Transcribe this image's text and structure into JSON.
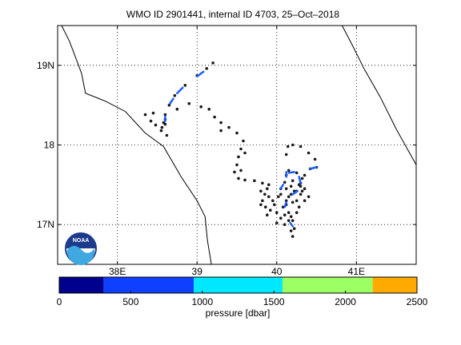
{
  "map": {
    "title": "WMO ID 2901441, internal ID 4703, 25–Oct–2018",
    "lon_range": [
      37.25,
      41.75
    ],
    "lat_range": [
      16.5,
      19.5
    ],
    "lon_ticks": [
      {
        "value": 38,
        "label": "38E"
      },
      {
        "value": 39,
        "label": "39"
      },
      {
        "value": 40,
        "label": "40"
      },
      {
        "value": 41,
        "label": "41E"
      }
    ],
    "lat_ticks": [
      {
        "value": 17,
        "label": "17N"
      },
      {
        "value": 18,
        "label": "18"
      },
      {
        "value": 19,
        "label": "19N"
      }
    ],
    "grid": true,
    "coastlines": [
      [
        [
          37.3,
          19.5
        ],
        [
          37.4,
          19.3
        ],
        [
          37.55,
          18.9
        ],
        [
          37.6,
          18.65
        ],
        [
          37.85,
          18.55
        ],
        [
          38.1,
          18.42
        ],
        [
          38.35,
          18.15
        ],
        [
          38.58,
          17.98
        ],
        [
          38.8,
          17.6
        ],
        [
          39.0,
          17.3
        ],
        [
          39.1,
          17.1
        ],
        [
          39.13,
          16.8
        ],
        [
          39.18,
          16.5
        ]
      ],
      [
        [
          40.82,
          19.5
        ],
        [
          40.95,
          19.25
        ],
        [
          41.1,
          18.95
        ],
        [
          41.3,
          18.6
        ],
        [
          41.5,
          18.2
        ],
        [
          41.75,
          17.75
        ]
      ]
    ],
    "logo": "noaa-logo",
    "logo_text": "NOAA",
    "track_color": "#1a1a1a",
    "shallow_color": "#1a5cff",
    "track": [
      [
        39.2,
        19.03
      ],
      [
        39.12,
        18.96
      ],
      [
        39.0,
        18.87
      ],
      [
        38.85,
        18.75
      ],
      [
        38.72,
        18.62
      ],
      [
        38.65,
        18.5
      ],
      [
        38.6,
        18.38
      ],
      [
        38.58,
        18.28
      ],
      [
        38.56,
        18.22
      ],
      [
        38.6,
        18.32
      ],
      [
        38.75,
        18.45
      ],
      [
        38.9,
        18.52
      ],
      [
        39.05,
        18.48
      ],
      [
        39.15,
        18.45
      ],
      [
        39.22,
        18.35
      ],
      [
        39.3,
        18.28
      ],
      [
        39.4,
        18.22
      ],
      [
        39.5,
        18.15
      ],
      [
        39.58,
        18.05
      ],
      [
        39.55,
        17.95
      ],
      [
        39.52,
        17.85
      ],
      [
        39.5,
        17.75
      ],
      [
        39.47,
        17.66
      ],
      [
        39.52,
        17.58
      ],
      [
        39.6,
        17.56
      ],
      [
        39.72,
        17.55
      ],
      [
        39.82,
        17.52
      ],
      [
        39.88,
        17.45
      ],
      [
        39.85,
        17.38
      ],
      [
        39.82,
        17.3
      ],
      [
        39.86,
        17.22
      ],
      [
        39.92,
        17.18
      ],
      [
        39.97,
        17.25
      ],
      [
        40.02,
        17.35
      ],
      [
        40.05,
        17.45
      ],
      [
        40.1,
        17.53
      ],
      [
        40.12,
        17.62
      ],
      [
        40.15,
        17.68
      ],
      [
        40.25,
        17.65
      ],
      [
        40.32,
        17.58
      ],
      [
        40.3,
        17.48
      ],
      [
        40.22,
        17.42
      ],
      [
        40.15,
        17.35
      ],
      [
        40.12,
        17.25
      ],
      [
        40.15,
        17.15
      ],
      [
        40.2,
        17.05
      ],
      [
        40.22,
        16.95
      ],
      [
        40.2,
        16.85
      ],
      [
        40.18,
        16.92
      ],
      [
        40.15,
        17.05
      ],
      [
        40.1,
        17.12
      ],
      [
        40.08,
        17.22
      ],
      [
        40.12,
        17.3
      ],
      [
        40.18,
        17.38
      ],
      [
        40.25,
        17.42
      ],
      [
        40.3,
        17.52
      ],
      [
        40.35,
        17.62
      ],
      [
        40.42,
        17.7
      ],
      [
        40.5,
        17.72
      ],
      [
        40.48,
        17.82
      ],
      [
        40.4,
        17.9
      ],
      [
        40.3,
        17.98
      ],
      [
        40.2,
        18.0
      ],
      [
        40.14,
        17.98
      ],
      [
        40.12,
        17.88
      ]
    ],
    "scatter_points": [
      [
        38.35,
        18.38
      ],
      [
        38.42,
        18.3
      ],
      [
        38.48,
        18.25
      ],
      [
        38.55,
        18.18
      ],
      [
        38.62,
        18.12
      ],
      [
        38.6,
        18.26
      ],
      [
        38.45,
        18.4
      ],
      [
        39.3,
        18.18
      ],
      [
        39.6,
        17.9
      ],
      [
        39.55,
        17.68
      ],
      [
        39.9,
        17.5
      ],
      [
        39.8,
        17.42
      ],
      [
        39.9,
        17.35
      ],
      [
        39.95,
        17.3
      ],
      [
        39.8,
        17.25
      ],
      [
        39.88,
        17.12
      ],
      [
        40.0,
        17.15
      ],
      [
        40.05,
        17.08
      ],
      [
        40.0,
        17.02
      ],
      [
        40.25,
        17.3
      ],
      [
        40.28,
        17.22
      ],
      [
        40.3,
        17.38
      ],
      [
        40.35,
        17.45
      ],
      [
        40.28,
        17.5
      ],
      [
        40.2,
        17.55
      ],
      [
        40.12,
        17.45
      ],
      [
        40.05,
        17.38
      ],
      [
        40.2,
        17.28
      ],
      [
        40.35,
        17.3
      ],
      [
        40.25,
        17.15
      ],
      [
        40.1,
        17.0
      ],
      [
        40.18,
        17.1
      ],
      [
        40.4,
        17.35
      ],
      [
        40.32,
        17.42
      ],
      [
        40.18,
        17.48
      ]
    ],
    "shallow_segments": [
      [
        [
          39.08,
          18.92
        ],
        [
          39.0,
          18.86
        ]
      ],
      [
        [
          38.82,
          18.72
        ],
        [
          38.75,
          18.65
        ]
      ],
      [
        [
          38.7,
          18.58
        ],
        [
          38.66,
          18.52
        ]
      ],
      [
        [
          38.6,
          18.36
        ],
        [
          38.6,
          18.3
        ]
      ],
      [
        [
          40.15,
          17.65
        ],
        [
          40.22,
          17.66
        ]
      ],
      [
        [
          40.28,
          17.6
        ],
        [
          40.3,
          17.52
        ]
      ],
      [
        [
          40.05,
          17.45
        ],
        [
          40.08,
          17.5
        ]
      ],
      [
        [
          40.12,
          17.6
        ],
        [
          40.12,
          17.66
        ]
      ],
      [
        [
          40.42,
          17.7
        ],
        [
          40.5,
          17.72
        ]
      ],
      [
        [
          40.1,
          17.22
        ],
        [
          40.12,
          17.28
        ]
      ],
      [
        [
          40.2,
          17.38
        ],
        [
          40.26,
          17.42
        ]
      ],
      [
        [
          40.17,
          17.02
        ],
        [
          40.2,
          16.98
        ]
      ]
    ]
  },
  "colorbar": {
    "label": "pressure [dbar]",
    "min": 0,
    "max": 2500,
    "ticks": [
      {
        "value": 0,
        "label": "0"
      },
      {
        "value": 500,
        "label": "500"
      },
      {
        "value": 1000,
        "label": "1000"
      },
      {
        "value": 1500,
        "label": "1500"
      },
      {
        "value": 2000,
        "label": "2000"
      },
      {
        "value": 2500,
        "label": "2500"
      }
    ],
    "bands": [
      {
        "from": 0,
        "to": 310,
        "color": "#00008f"
      },
      {
        "from": 310,
        "to": 940,
        "color": "#0f3fff"
      },
      {
        "from": 940,
        "to": 1560,
        "color": "#00e8ff"
      },
      {
        "from": 1560,
        "to": 2190,
        "color": "#9cff63"
      },
      {
        "from": 2190,
        "to": 2500,
        "color": "#ffaa00"
      }
    ]
  }
}
